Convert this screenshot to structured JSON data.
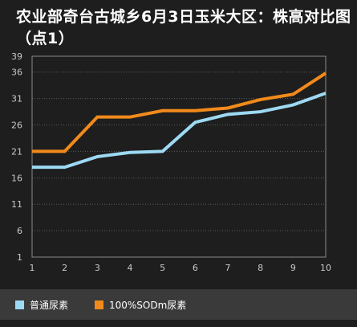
{
  "title": "农业部奇台古城乡6月3日玉米大区：株高对比图（点1）",
  "colors": {
    "background": "#1e1e1e",
    "plot_border": "#8a8a8a",
    "grid": "#5c5c5c",
    "axis_text": "#c8c8c8",
    "legend_background": "#3a3a3a"
  },
  "chart_data": {
    "type": "line",
    "title": "农业部奇台古城乡6月3日玉米大区：株高对比图（点1）",
    "xlabel": "",
    "ylabel": "",
    "x": [
      1,
      2,
      3,
      4,
      5,
      6,
      7,
      8,
      9,
      10
    ],
    "xlim": [
      1,
      10
    ],
    "ylim": [
      1,
      39
    ],
    "yticks": [
      1,
      6,
      11,
      16,
      21,
      26,
      31,
      36,
      39
    ],
    "grid": true,
    "legend_position": "bottom",
    "series": [
      {
        "name": "普通尿素",
        "color": "#9dd9f3",
        "values": [
          18,
          18,
          20,
          20.8,
          21,
          26.5,
          28,
          28.5,
          29.8,
          32
        ]
      },
      {
        "name": "100%SODm尿素",
        "color": "#f28a1b",
        "values": [
          21,
          21,
          27.5,
          27.5,
          28.7,
          28.7,
          29.2,
          30.8,
          31.8,
          35.8
        ]
      }
    ]
  }
}
